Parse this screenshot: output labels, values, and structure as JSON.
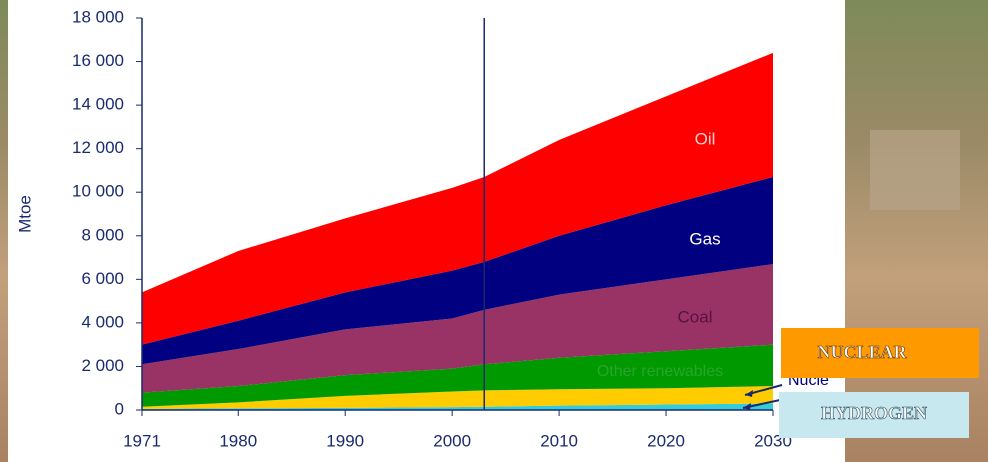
{
  "chart_data": {
    "type": "area",
    "stacked": true,
    "ylabel": "Mtoe",
    "x": [
      1971,
      1980,
      1990,
      2000,
      2003,
      2010,
      2020,
      2030
    ],
    "series": [
      {
        "color": "#33ccdd",
        "values": [
          50,
          80,
          100,
          130,
          150,
          200,
          250,
          300
        ]
      },
      {
        "name": "Nucle",
        "color": "#ffcc00",
        "values": [
          100,
          270,
          550,
          720,
          750,
          750,
          750,
          800
        ]
      },
      {
        "name": "Other renewables",
        "color": "#009900",
        "values": [
          650,
          750,
          950,
          1050,
          1200,
          1450,
          1700,
          1900
        ]
      },
      {
        "name": "Coal",
        "color": "#993366",
        "values": [
          1300,
          1700,
          2100,
          2300,
          2500,
          2900,
          3300,
          3700
        ]
      },
      {
        "name": "Gas",
        "color": "#000080",
        "values": [
          900,
          1300,
          1700,
          2200,
          2200,
          2700,
          3400,
          4000
        ]
      },
      {
        "name": "Oil",
        "color": "#ff0000",
        "values": [
          2400,
          3200,
          3400,
          3800,
          3900,
          4400,
          5000,
          5700
        ]
      }
    ],
    "xlim": [
      1971,
      2030
    ],
    "xticks": [
      1971,
      1980,
      1990,
      2000,
      2010,
      2020,
      2030
    ],
    "ylim": [
      0,
      18000
    ],
    "yticks": [
      0,
      {
        "value": 2000,
        "label": "2 000"
      },
      {
        "value": 4000,
        "label": "4 000"
      },
      {
        "value": 6000,
        "label": "6 000"
      },
      {
        "value": 8000,
        "label": "8 000"
      },
      {
        "value": 10000,
        "label": "10 000"
      },
      {
        "value": 12000,
        "label": "12 000"
      },
      {
        "value": 14000,
        "label": "14 000"
      },
      {
        "value": 16000,
        "label": "16 000"
      },
      {
        "value": 18000,
        "label": "18 000"
      }
    ],
    "divider": 2003,
    "annotations": [
      "NUCLEAR",
      "HYDROGEN"
    ]
  }
}
